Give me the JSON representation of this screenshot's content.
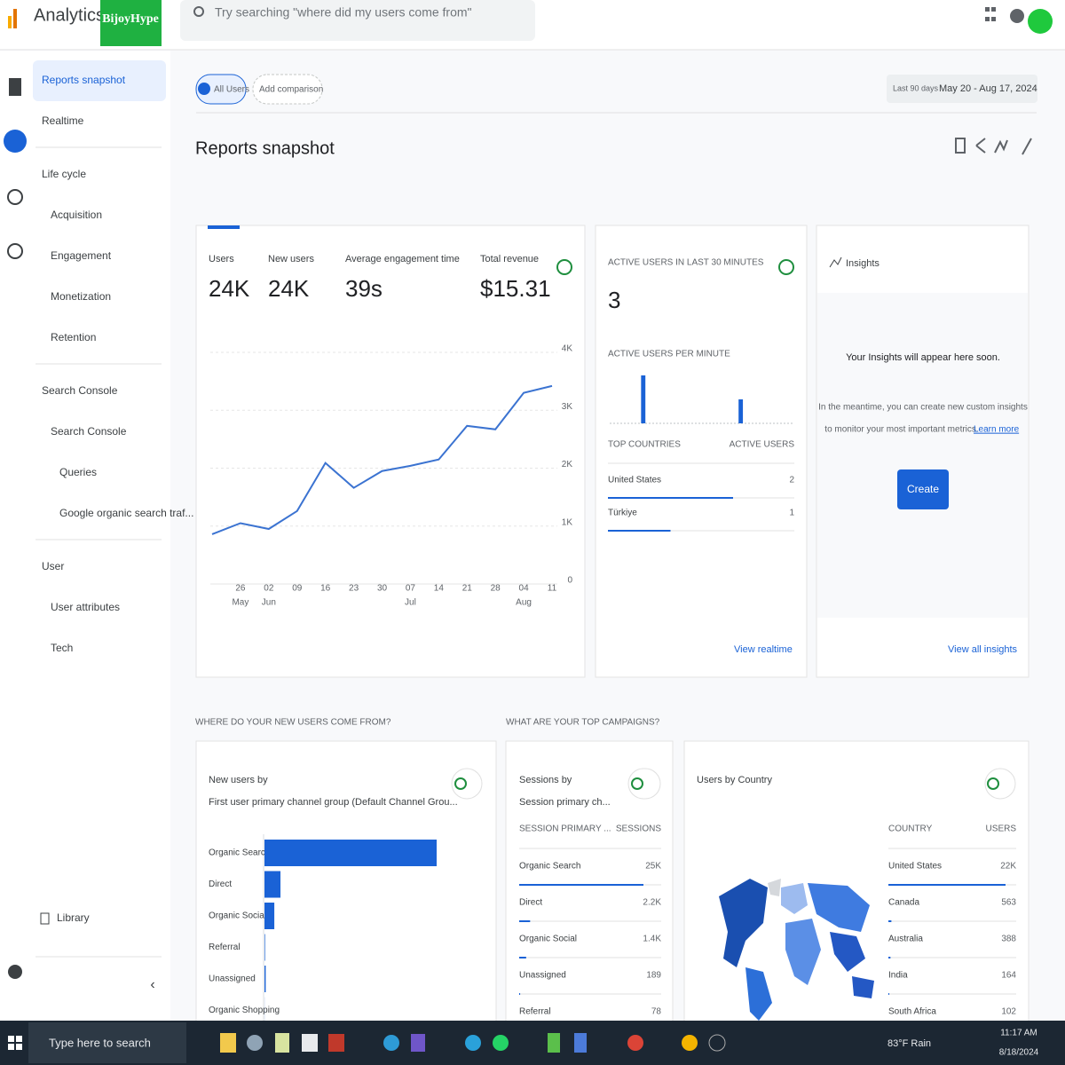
{
  "header": {
    "app_name": "Analytics",
    "account": "BijoyHype",
    "search_placeholder": "Try searching \"where did my users come from\""
  },
  "sidebar": {
    "items": [
      "Reports snapshot",
      "Realtime",
      "Life cycle",
      "Acquisition",
      "Engagement",
      "Monetization",
      "Retention",
      "Search Console",
      "Search Console",
      "Queries",
      "Google organic search traf...",
      "User",
      "User attributes",
      "Tech",
      "Library"
    ]
  },
  "toolbar": {
    "all_users": "All Users",
    "add_comparison": "Add comparison",
    "date_prefix": "Last 90 days",
    "date_range": "May 20 - Aug 17, 2024"
  },
  "page_title": "Reports snapshot",
  "overview": {
    "metrics": [
      {
        "label": "Users",
        "value": "24K"
      },
      {
        "label": "New users",
        "value": "24K"
      },
      {
        "label": "Average engagement time",
        "value": "39s"
      },
      {
        "label": "Total revenue",
        "value": "$15.31"
      }
    ],
    "chart": {
      "type": "line",
      "color": "#3b73d1",
      "categories": [
        null,
        "26",
        "02",
        "09",
        "16",
        "23",
        "30",
        "07",
        "14",
        "21",
        "28",
        "04",
        "11"
      ],
      "months": [
        null,
        "May",
        "Jun",
        null,
        null,
        null,
        null,
        "Jul",
        null,
        null,
        null,
        "Aug",
        null
      ],
      "values": [
        860,
        1050,
        950,
        1260,
        2090,
        1660,
        1950,
        2040,
        2150,
        2730,
        2670,
        3300,
        3420
      ],
      "ylim": [
        0,
        4000
      ],
      "yticks": [
        0,
        {
          "value": 1000,
          "label": "1K"
        },
        {
          "value": 2000,
          "label": "2K"
        },
        {
          "value": 3000,
          "label": "3K"
        },
        {
          "value": 4000,
          "label": "4K"
        }
      ],
      "grid": true
    }
  },
  "realtime": {
    "title": "ACTIVE USERS IN LAST 30 MINUTES",
    "value": "3",
    "per_minute_title": "ACTIVE USERS PER MINUTE",
    "per_minute": {
      "type": "bar",
      "color": "#1a62d6",
      "values": [
        0,
        0,
        0,
        0,
        0,
        2,
        0,
        0,
        0,
        0,
        0,
        0,
        0,
        0,
        0,
        0,
        0,
        0,
        0,
        0,
        0,
        1,
        0,
        0,
        0,
        0,
        0,
        0,
        0,
        0
      ]
    },
    "table": {
      "headers": [
        "TOP COUNTRIES",
        "ACTIVE USERS"
      ],
      "categories": [
        "United States",
        "Türkiye"
      ],
      "values": [
        2,
        1
      ]
    },
    "link": "View realtime"
  },
  "insights": {
    "title": "Insights",
    "message": "Your Insights will appear here soon.",
    "body_lines": [
      "In the meantime, you can create new custom insights",
      "to monitor your most important metrics."
    ],
    "link_text": "Learn more",
    "button": "Create",
    "link": "View all insights"
  },
  "sections": {
    "new_users_heading": "WHERE DO YOUR NEW USERS COME FROM?",
    "campaigns_heading": "WHAT ARE YOUR TOP CAMPAIGNS?"
  },
  "new_users_card": {
    "title": "New users by",
    "subtitle": "First user primary channel group (Default Channel Grou...",
    "chart": {
      "type": "bar",
      "color": "#1a62d6",
      "categories": [
        "Organic Search",
        "Direct",
        "Organic Social",
        "Referral",
        "Unassigned",
        "Organic Shopping"
      ],
      "values": [
        21000,
        1950,
        1200,
        70,
        150,
        10
      ]
    }
  },
  "sessions_card": {
    "title": "Sessions by",
    "subtitle": "Session primary ch...",
    "headers": [
      "SESSION PRIMARY ...",
      "SESSIONS"
    ],
    "categories": [
      "Organic Search",
      "Direct",
      "Organic Social",
      "Unassigned",
      "Referral"
    ],
    "values": [
      25000,
      2200,
      1400,
      189,
      78
    ],
    "value_labels": [
      "25K",
      "2.2K",
      "1.4K",
      "189",
      "78"
    ]
  },
  "country_card": {
    "title": "Users by Country",
    "headers": [
      "COUNTRY",
      "USERS"
    ],
    "categories": [
      "United States",
      "Canada",
      "Australia",
      "India",
      "South Africa"
    ],
    "values": [
      22000,
      563,
      388,
      164,
      102
    ],
    "value_labels": [
      "22K",
      "563",
      "388",
      "164",
      "102"
    ]
  },
  "taskbar": {
    "search": "Type here to search",
    "weather": "83°F Rain",
    "time": "11:17 AM",
    "date": "8/18/2024"
  }
}
